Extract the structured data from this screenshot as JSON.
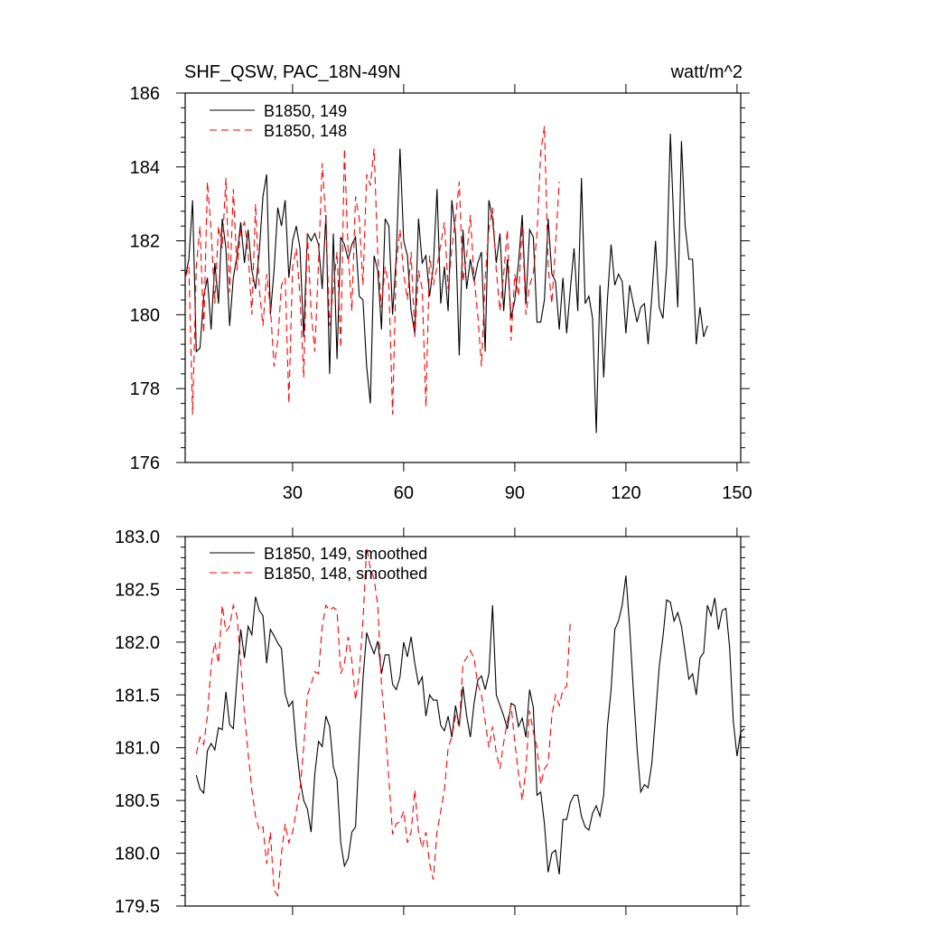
{
  "chart_data": [
    {
      "type": "line",
      "title": "SHF_QSW, PAC_18N-49N",
      "units": "watt/m^2",
      "xlim": [
        1,
        151
      ],
      "ylim": [
        176,
        186
      ],
      "x_ticks": [
        "30",
        "60",
        "90",
        "120",
        "150"
      ],
      "y_ticks": [
        "176",
        "178",
        "180",
        "182",
        "184",
        "186"
      ],
      "legend_position": "top-left",
      "series": [
        {
          "name": "B1850, 149",
          "color": "#000000",
          "dash": "solid",
          "values": [
            181.0,
            181.5,
            183.1,
            179.0,
            179.1,
            180.5,
            181.0,
            179.6,
            181.4,
            180.3,
            182.6,
            181.8,
            179.7,
            181.0,
            181.6,
            182.5,
            181.4,
            182.3,
            181.2,
            180.7,
            181.7,
            183.2,
            183.8,
            180.0,
            181.2,
            182.9,
            182.4,
            183.1,
            181.0,
            182.0,
            182.4,
            181.8,
            179.4,
            182.2,
            182.0,
            182.2,
            181.9,
            180.7,
            182.7,
            178.4,
            182.2,
            178.8,
            182.1,
            181.9,
            181.5,
            181.9,
            182.1,
            180.5,
            180.4,
            178.6,
            177.6,
            181.6,
            181.2,
            179.6,
            182.6,
            182.4,
            180.0,
            181.6,
            184.5,
            182.0,
            181.6,
            180.1,
            179.5,
            182.6,
            181.4,
            181.6,
            180.5,
            181.3,
            183.4,
            180.3,
            181.3,
            180.1,
            183.1,
            182.2,
            178.9,
            182.3,
            180.7,
            181.5,
            180.9,
            181.4,
            181.7,
            179.0,
            183.1,
            182.6,
            181.4,
            182.2,
            180.1,
            181.5,
            179.9,
            180.4,
            181.4,
            182.7,
            180.3,
            182.3,
            182.1,
            179.8,
            179.8,
            180.4,
            182.6,
            181.1,
            180.9,
            179.6,
            181.0,
            179.5,
            180.7,
            181.8,
            180.1,
            183.7,
            180.3,
            180.5,
            179.9,
            176.8,
            180.8,
            178.3,
            180.4,
            181.9,
            180.8,
            181.1,
            180.9,
            179.5,
            180.8,
            180.3,
            179.8,
            180.2,
            180.3,
            179.2,
            180.5,
            182.0,
            180.2,
            179.9,
            181.3,
            184.9,
            182.3,
            180.2,
            184.7,
            182.4,
            181.5,
            181.5,
            179.2,
            180.2,
            179.4,
            179.7
          ],
          "note_x_start": 1
        },
        {
          "name": "B1850, 148",
          "color": "#ff0000",
          "dash": "dashed",
          "values": [
            181.0,
            181.3,
            177.3,
            181.3,
            182.4,
            179.5,
            183.6,
            182.3,
            180.3,
            182.4,
            181.8,
            183.7,
            180.6,
            183.4,
            181.2,
            182.3,
            182.5,
            181.7,
            180.0,
            183.0,
            180.7,
            179.7,
            181.1,
            180.2,
            178.6,
            179.3,
            180.8,
            181.0,
            177.6,
            181.3,
            181.8,
            180.5,
            178.3,
            182.2,
            180.1,
            179.0,
            181.4,
            184.1,
            182.5,
            179.7,
            180.7,
            181.7,
            179.1,
            184.5,
            181.7,
            180.1,
            183.2,
            182.6,
            180.8,
            183.8,
            183.5,
            184.5,
            181.6,
            180.2,
            181.3,
            180.8,
            177.3,
            181.4,
            182.3,
            181.1,
            180.4,
            181.7,
            179.4,
            181.2,
            180.7,
            177.5,
            181.6,
            180.8,
            181.3,
            181.9,
            182.5,
            180.7,
            181.8,
            182.6,
            183.6,
            180.9,
            181.6,
            182.7,
            181.0,
            180.0,
            178.6,
            181.0,
            182.3,
            182.9,
            181.2,
            180.1,
            181.1,
            182.3,
            179.3,
            181.1,
            180.5,
            182.4,
            180.0,
            180.8,
            181.1,
            182.2,
            184.4,
            185.1,
            181.3,
            180.3,
            181.9,
            183.6
          ],
          "note_x_start": 1
        }
      ]
    },
    {
      "type": "line",
      "xlim": [
        1,
        151
      ],
      "ylim": [
        179.5,
        183.0
      ],
      "y_ticks": [
        "179.5",
        "180.0",
        "180.5",
        "181.0",
        "181.5",
        "182.0",
        "182.5",
        "183.0"
      ],
      "legend_position": "top-left",
      "series": [
        {
          "name": "B1850, 149, smoothed",
          "color": "#000000",
          "dash": "solid",
          "x_start": 4,
          "values": [
            180.74,
            180.61,
            180.57,
            180.97,
            181.04,
            180.98,
            181.19,
            181.17,
            181.53,
            181.22,
            181.18,
            181.66,
            182.12,
            181.85,
            182.15,
            182.07,
            182.43,
            182.3,
            182.25,
            181.8,
            182.12,
            182.06,
            181.99,
            181.94,
            181.51,
            181.39,
            181.44,
            181.02,
            180.7,
            180.5,
            180.42,
            180.2,
            180.75,
            181.06,
            181.01,
            181.3,
            181.2,
            180.82,
            180.7,
            180.1,
            179.88,
            179.95,
            180.2,
            180.25,
            181.0,
            181.65,
            182.09,
            181.98,
            181.89,
            182.01,
            181.7,
            181.88,
            181.88,
            181.6,
            181.55,
            181.67,
            182.0,
            181.86,
            182.05,
            181.8,
            181.6,
            181.67,
            181.3,
            181.5,
            181.45,
            181.45,
            181.21,
            181.16,
            181.3,
            181.1,
            181.4,
            181.2,
            181.58,
            181.3,
            181.1,
            181.42,
            181.64,
            181.68,
            181.55,
            181.7,
            182.35,
            181.5,
            181.4,
            181.3,
            181.18,
            181.42,
            181.4,
            181.2,
            181.28,
            181.1,
            181.55,
            181.38,
            180.55,
            180.58,
            180.28,
            179.82,
            180.0,
            180.03,
            179.8,
            180.32,
            180.32,
            180.48,
            180.55,
            180.55,
            180.35,
            180.25,
            180.22,
            180.38,
            180.45,
            180.35,
            180.55,
            181.2,
            181.55,
            182.12,
            182.2,
            182.35,
            182.63,
            182.15,
            181.55,
            181.0,
            180.58,
            180.65,
            180.62,
            180.85,
            181.3,
            181.77,
            182.05,
            182.4,
            182.38,
            182.2,
            182.28,
            182.15,
            181.9,
            181.65,
            181.7,
            181.5,
            181.85,
            181.9,
            182.35,
            182.25,
            182.42,
            182.12,
            182.3,
            182.32,
            181.95,
            181.25,
            180.92,
            181.15,
            181.18
          ]
        },
        {
          "name": "B1850, 148, smoothed",
          "color": "#ff0000",
          "dash": "dashed",
          "x_start": 4,
          "values": [
            180.94,
            181.1,
            181.03,
            181.3,
            181.78,
            182.0,
            181.8,
            182.35,
            182.1,
            182.15,
            182.35,
            182.25,
            181.8,
            181.32,
            180.95,
            180.6,
            180.35,
            180.22,
            180.25,
            179.9,
            180.2,
            179.65,
            179.6,
            180.0,
            180.28,
            180.1,
            180.2,
            180.4,
            180.6,
            181.0,
            181.5,
            181.6,
            181.72,
            181.7,
            182.15,
            182.35,
            182.3,
            182.33,
            182.3,
            181.7,
            181.8,
            182.05,
            181.82,
            181.45,
            181.7,
            182.2,
            182.9,
            182.7,
            182.6,
            182.35,
            181.6,
            181.2,
            180.7,
            180.18,
            180.28,
            180.3,
            180.4,
            180.1,
            180.2,
            180.6,
            180.2,
            180.05,
            180.2,
            179.9,
            179.75,
            180.2,
            180.4,
            180.6,
            181.0,
            181.1,
            181.3,
            181.2,
            181.8,
            181.85,
            181.92,
            181.85,
            181.6,
            181.5,
            181.25,
            181.0,
            181.2,
            180.95,
            180.8,
            181.05,
            181.25,
            181.4,
            181.05,
            180.75,
            180.5,
            180.8,
            181.35,
            181.15,
            181.0,
            180.65,
            180.8,
            180.85,
            181.3,
            181.5,
            181.4,
            181.55,
            181.58,
            182.2
          ]
        }
      ]
    }
  ]
}
